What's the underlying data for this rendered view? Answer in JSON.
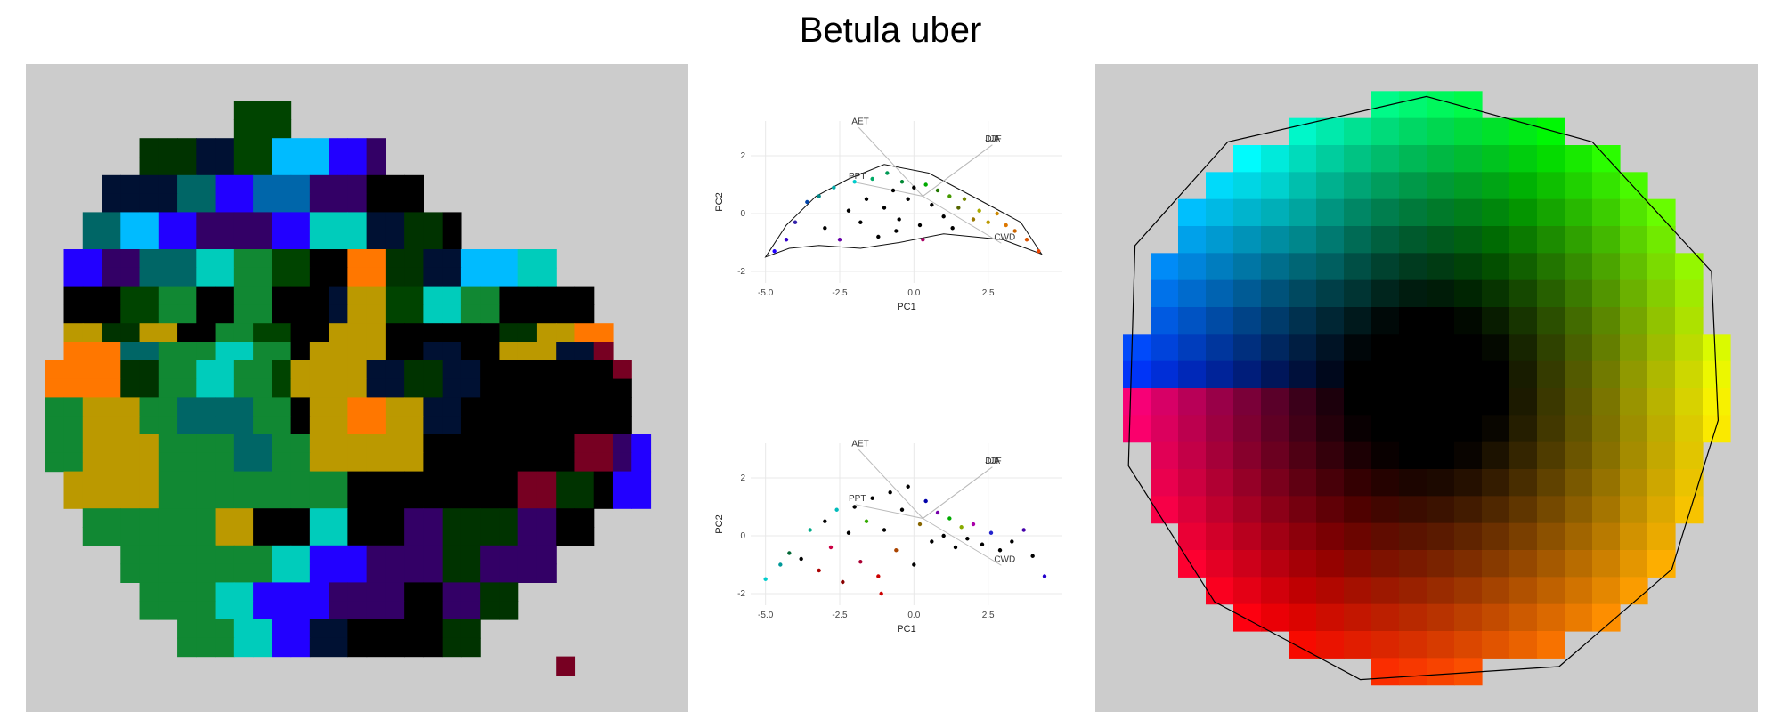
{
  "title": "Betula uber",
  "chart_data": [
    {
      "type": "heatmap",
      "name": "geographic-rgb-grid",
      "background": "#cccccc",
      "rows": [
        "...................................",
        "...................................",
        "...........HHH.....................",
        "...........HHH.....................",
        "......MMMNNHHCCCBBP................",
        "......MMMNNHHCCCBBP................",
        "....NNNNLLBBFFFPPPDDD..............",
        "....NNNNLLBBFFFPPPDDD..............",
        "...LLCCBBPPPPBBTTTNNMMD............",
        "...LLCCBBPPPPBBTTTNNMMD............",
        "..BBPPLLLTTGGHHDDOOMMNNCCCTT.......",
        "..BBPPLLLTTGGHHDDOOMMNNCCCTT.......",
        "..DDDHHGGDDGGDDDNYYHHTTGGDDDDD.....",
        "..DDDHHGGDDGGDDDNYYHHTTGGDDDDD.....",
        "..YYMMYYDDGGHHDDYYYDDDDDDMMYYOO....",
        "..OOOLLGGGTTGGDYYYYDDNNDDYYYNNR....",
        ".OOOOMMGGTTGGHYYYYNNMMNNDDDDDDDR...",
        ".OOOOMMGGTTGGHYYYYNNMMNNDDDDDDDD...",
        ".GGYYYGGLLLLGGDYYOOYYNNDDDDDDDDD...",
        ".GGYYYGGLLLLGGDYYOOYYNNDDDDDDDDD...",
        ".GGYYYYGGGGLLGGYYYYYYDDDDDDDDRRPB..",
        ".GGYYYYGGGGLLGGYYYYYYDDDDDDDDRRPB..",
        "..YYYYYGGGGGGGGGGDDDDDDDDDRRMMDBB..",
        "..YYYYYGGGGGGGGGGDDDDDDDDDRRMMDBB..",
        "...GGGGGGGYYDDDTTDDDPPMMMMPPDD.....",
        "...GGGGGGGYYDDDTTDDDPPMMMMPPDD.....",
        ".....GGGGGGGGTTBBBPPPPMMPPPP.......",
        ".....GGGGGGGGTTBBBPPPPMMPPPP.......",
        "......GGGGTTBBBBPPPPDDPPMM.........",
        "......GGGGTTBBBBPPPPDDPPMM.........",
        "........GGGTTBBNNDDDDDMM...........",
        "........GGGTTBBNNDDDDDMM...........",
        "............................R......",
        "...................................",
        "..................................."
      ]
    },
    {
      "type": "scatter",
      "name": "pca-biplot-hull",
      "xlabel": "PC1",
      "ylabel": "PC2",
      "xlim": [
        -5.5,
        5.0
      ],
      "ylim": [
        -2.4,
        3.2
      ],
      "xticks": [
        -5.0,
        -2.5,
        0.0,
        2.5
      ],
      "xtick_labels": [
        "-5.0",
        "-2.5",
        "0.0",
        "2.5"
      ],
      "yticks": [
        -2,
        0,
        2
      ],
      "ytick_labels": [
        "-2",
        "0",
        "2"
      ],
      "labels": [
        {
          "text": "AET",
          "x": -2.1,
          "y": 3.1
        },
        {
          "text": "PPT",
          "x": -2.2,
          "y": 1.2
        },
        {
          "text": "DJF",
          "x": 2.4,
          "y": 2.5
        },
        {
          "text": "JJA",
          "x": 2.4,
          "y": 2.5
        },
        {
          "text": "CWD",
          "x": 2.7,
          "y": -0.9
        }
      ],
      "hull": [
        [
          -5.0,
          -1.5
        ],
        [
          -4.3,
          -0.4
        ],
        [
          -3.3,
          0.6
        ],
        [
          -2.2,
          1.2
        ],
        [
          -1.0,
          1.7
        ],
        [
          0.5,
          1.4
        ],
        [
          1.6,
          0.8
        ],
        [
          2.7,
          0.2
        ],
        [
          3.6,
          -0.3
        ],
        [
          4.3,
          -1.4
        ],
        [
          3.0,
          -0.9
        ],
        [
          1.0,
          -0.7
        ],
        [
          -0.5,
          -1.0
        ],
        [
          -1.8,
          -1.2
        ],
        [
          -3.2,
          -1.1
        ],
        [
          -4.2,
          -1.2
        ]
      ],
      "points": [
        {
          "x": -4.7,
          "y": -1.3,
          "c": "#2200ff"
        },
        {
          "x": -4.3,
          "y": -0.9,
          "c": "#3300cc"
        },
        {
          "x": -4.0,
          "y": -0.3,
          "c": "#3322aa"
        },
        {
          "x": -3.6,
          "y": 0.4,
          "c": "#0044aa"
        },
        {
          "x": -3.2,
          "y": 0.6,
          "c": "#008888"
        },
        {
          "x": -3.0,
          "y": -0.5,
          "c": "#000000"
        },
        {
          "x": -2.7,
          "y": 0.9,
          "c": "#00aaaa"
        },
        {
          "x": -2.5,
          "y": -0.9,
          "c": "#6600aa"
        },
        {
          "x": -2.2,
          "y": 0.1,
          "c": "#000000"
        },
        {
          "x": -2.0,
          "y": 1.1,
          "c": "#00cccc"
        },
        {
          "x": -1.8,
          "y": -0.3,
          "c": "#000000"
        },
        {
          "x": -1.6,
          "y": 0.5,
          "c": "#000000"
        },
        {
          "x": -1.4,
          "y": 1.2,
          "c": "#00aa66"
        },
        {
          "x": -1.2,
          "y": -0.8,
          "c": "#000000"
        },
        {
          "x": -1.0,
          "y": 0.2,
          "c": "#000000"
        },
        {
          "x": -0.9,
          "y": 1.4,
          "c": "#009955"
        },
        {
          "x": -0.7,
          "y": 0.8,
          "c": "#000000"
        },
        {
          "x": -0.5,
          "y": -0.2,
          "c": "#000000"
        },
        {
          "x": -0.4,
          "y": 1.1,
          "c": "#008833"
        },
        {
          "x": -0.2,
          "y": 0.5,
          "c": "#000000"
        },
        {
          "x": 0.0,
          "y": 0.9,
          "c": "#000000"
        },
        {
          "x": 0.2,
          "y": -0.4,
          "c": "#000000"
        },
        {
          "x": 0.4,
          "y": 1.0,
          "c": "#00aa00"
        },
        {
          "x": 0.6,
          "y": 0.3,
          "c": "#000000"
        },
        {
          "x": 0.8,
          "y": 0.8,
          "c": "#227700"
        },
        {
          "x": 1.0,
          "y": -0.1,
          "c": "#000000"
        },
        {
          "x": 1.2,
          "y": 0.6,
          "c": "#449900"
        },
        {
          "x": 1.5,
          "y": 0.2,
          "c": "#556600"
        },
        {
          "x": 1.7,
          "y": 0.5,
          "c": "#778800"
        },
        {
          "x": 2.0,
          "y": -0.2,
          "c": "#997700"
        },
        {
          "x": 2.2,
          "y": 0.1,
          "c": "#aaaa00"
        },
        {
          "x": 2.5,
          "y": -0.3,
          "c": "#bb9900"
        },
        {
          "x": 2.8,
          "y": 0.0,
          "c": "#cc8800"
        },
        {
          "x": 3.1,
          "y": -0.4,
          "c": "#dd7700"
        },
        {
          "x": 3.4,
          "y": -0.6,
          "c": "#cc6600"
        },
        {
          "x": 3.8,
          "y": -0.9,
          "c": "#dd5500"
        },
        {
          "x": 4.2,
          "y": -1.3,
          "c": "#ee4400"
        },
        {
          "x": 0.3,
          "y": -0.9,
          "c": "#aa0066"
        },
        {
          "x": -0.6,
          "y": -0.6,
          "c": "#000000"
        },
        {
          "x": 1.3,
          "y": -0.5,
          "c": "#000000"
        }
      ]
    },
    {
      "type": "scatter",
      "name": "pca-biplot-points",
      "xlabel": "PC1",
      "ylabel": "PC2",
      "xlim": [
        -5.5,
        5.0
      ],
      "ylim": [
        -2.4,
        3.2
      ],
      "xticks": [
        -5.0,
        -2.5,
        0.0,
        2.5
      ],
      "xtick_labels": [
        "-5.0",
        "-2.5",
        "0.0",
        "2.5"
      ],
      "yticks": [
        -2,
        0,
        2
      ],
      "ytick_labels": [
        "-2",
        "0",
        "2"
      ],
      "labels": [
        {
          "text": "AET",
          "x": -2.1,
          "y": 3.1
        },
        {
          "text": "PPT",
          "x": -2.2,
          "y": 1.2
        },
        {
          "text": "DJF",
          "x": 2.4,
          "y": 2.5
        },
        {
          "text": "JJA",
          "x": 2.4,
          "y": 2.5
        },
        {
          "text": "CWD",
          "x": 2.7,
          "y": -0.9
        }
      ],
      "points": [
        {
          "x": -5.0,
          "y": -1.5,
          "c": "#00cccc"
        },
        {
          "x": -4.5,
          "y": -1.0,
          "c": "#009999"
        },
        {
          "x": -4.2,
          "y": -0.6,
          "c": "#006633"
        },
        {
          "x": -3.8,
          "y": -0.8,
          "c": "#000000"
        },
        {
          "x": -3.5,
          "y": 0.2,
          "c": "#00aa88"
        },
        {
          "x": -3.2,
          "y": -1.2,
          "c": "#aa0000"
        },
        {
          "x": -3.0,
          "y": 0.5,
          "c": "#000000"
        },
        {
          "x": -2.8,
          "y": -0.4,
          "c": "#cc0044"
        },
        {
          "x": -2.6,
          "y": 0.9,
          "c": "#00bbbb"
        },
        {
          "x": -2.4,
          "y": -1.6,
          "c": "#880000"
        },
        {
          "x": -2.2,
          "y": 0.1,
          "c": "#000000"
        },
        {
          "x": -2.0,
          "y": 1.0,
          "c": "#000000"
        },
        {
          "x": -1.8,
          "y": -0.9,
          "c": "#aa0033"
        },
        {
          "x": -1.6,
          "y": 0.5,
          "c": "#33aa00"
        },
        {
          "x": -1.4,
          "y": 1.3,
          "c": "#000000"
        },
        {
          "x": -1.2,
          "y": -1.4,
          "c": "#cc0000"
        },
        {
          "x": -1.0,
          "y": 0.2,
          "c": "#000000"
        },
        {
          "x": -0.8,
          "y": 1.5,
          "c": "#000000"
        },
        {
          "x": -0.6,
          "y": -0.5,
          "c": "#aa4400"
        },
        {
          "x": -0.4,
          "y": 0.9,
          "c": "#000000"
        },
        {
          "x": -0.2,
          "y": 1.7,
          "c": "#000000"
        },
        {
          "x": 0.0,
          "y": -1.0,
          "c": "#000000"
        },
        {
          "x": 0.2,
          "y": 0.4,
          "c": "#886600"
        },
        {
          "x": 0.4,
          "y": 1.2,
          "c": "#0000aa"
        },
        {
          "x": 0.6,
          "y": -0.2,
          "c": "#000000"
        },
        {
          "x": 0.8,
          "y": 0.8,
          "c": "#7700aa"
        },
        {
          "x": 1.0,
          "y": 0.0,
          "c": "#000000"
        },
        {
          "x": 1.2,
          "y": 0.6,
          "c": "#00aa00"
        },
        {
          "x": 1.4,
          "y": -0.4,
          "c": "#000000"
        },
        {
          "x": 1.6,
          "y": 0.3,
          "c": "#88aa00"
        },
        {
          "x": 1.8,
          "y": -0.1,
          "c": "#000000"
        },
        {
          "x": 2.0,
          "y": 0.4,
          "c": "#aa00aa"
        },
        {
          "x": 2.3,
          "y": -0.3,
          "c": "#000000"
        },
        {
          "x": 2.6,
          "y": 0.1,
          "c": "#2222cc"
        },
        {
          "x": 2.9,
          "y": -0.5,
          "c": "#000000"
        },
        {
          "x": 3.3,
          "y": -0.2,
          "c": "#000000"
        },
        {
          "x": 3.7,
          "y": 0.2,
          "c": "#4400aa"
        },
        {
          "x": 4.0,
          "y": -0.7,
          "c": "#000000"
        },
        {
          "x": 4.4,
          "y": -1.4,
          "c": "#2200cc"
        },
        {
          "x": -1.1,
          "y": -2.0,
          "c": "#cc0000"
        }
      ]
    },
    {
      "type": "heatmap",
      "name": "color-key-grid",
      "background": "#cccccc",
      "hull": [
        [
          0.5,
          0.05
        ],
        [
          0.75,
          0.12
        ],
        [
          0.93,
          0.32
        ],
        [
          0.94,
          0.55
        ],
        [
          0.87,
          0.78
        ],
        [
          0.7,
          0.93
        ],
        [
          0.4,
          0.95
        ],
        [
          0.18,
          0.83
        ],
        [
          0.05,
          0.62
        ],
        [
          0.06,
          0.28
        ],
        [
          0.2,
          0.12
        ]
      ]
    }
  ]
}
